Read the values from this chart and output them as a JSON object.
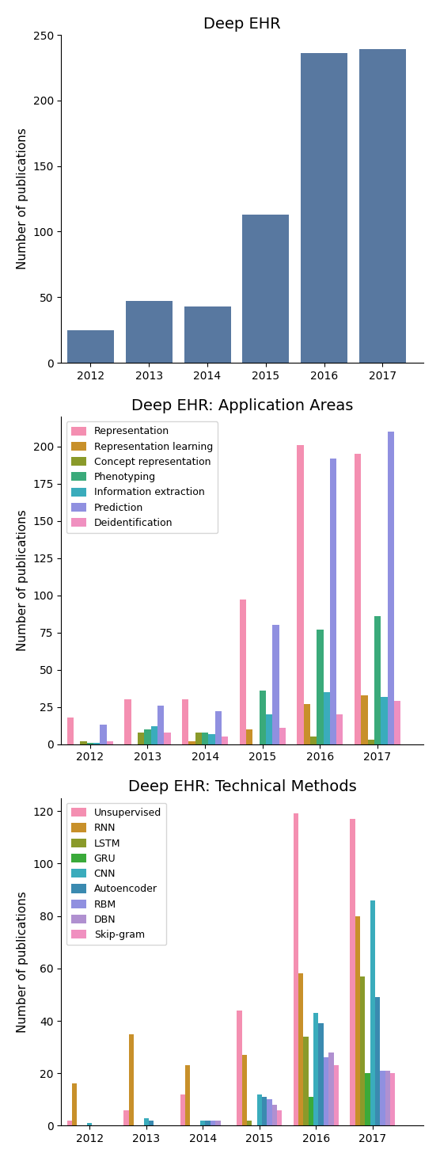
{
  "chart1": {
    "title": "Deep EHR",
    "years": [
      2012,
      2013,
      2014,
      2015,
      2016,
      2017
    ],
    "values": [
      25,
      47,
      43,
      113,
      236,
      239
    ],
    "bar_color": "#5878a0",
    "ylabel": "Number of publications",
    "ylim": [
      0,
      250
    ]
  },
  "chart2": {
    "title": "Deep EHR: Application Areas",
    "years": [
      2012,
      2013,
      2014,
      2015,
      2016,
      2017
    ],
    "ylabel": "Number of publications",
    "ylim": [
      0,
      220
    ],
    "categories": [
      "Representation",
      "Representation learning",
      "Concept representation",
      "Phenotyping",
      "Information extraction",
      "Prediction",
      "Deidentification"
    ],
    "colors": [
      "#f48fb1",
      "#c8902a",
      "#8a9a2a",
      "#3aaa7a",
      "#3aacbc",
      "#9090e0",
      "#f090c0"
    ],
    "data": {
      "Representation": [
        18,
        30,
        30,
        97,
        201,
        195
      ],
      "Representation learning": [
        0,
        0,
        2,
        10,
        27,
        33
      ],
      "Concept representation": [
        2,
        8,
        8,
        0,
        5,
        3
      ],
      "Phenotyping": [
        1,
        10,
        8,
        36,
        77,
        86
      ],
      "Information extraction": [
        1,
        12,
        7,
        20,
        35,
        32
      ],
      "Prediction": [
        13,
        26,
        22,
        80,
        192,
        210
      ],
      "Deidentification": [
        2,
        8,
        5,
        11,
        20,
        29
      ]
    }
  },
  "chart3": {
    "title": "Deep EHR: Technical Methods",
    "years": [
      2012,
      2013,
      2014,
      2015,
      2016,
      2017
    ],
    "ylabel": "Number of publications",
    "ylim": [
      0,
      125
    ],
    "categories": [
      "Unsupervised",
      "RNN",
      "LSTM",
      "GRU",
      "CNN",
      "Autoencoder",
      "RBM",
      "DBN",
      "Skip-gram"
    ],
    "colors": [
      "#f48fb1",
      "#c8902a",
      "#8a9a2a",
      "#3aaa3a",
      "#3aacbc",
      "#3a8ab0",
      "#9090e0",
      "#b090d0",
      "#f090c0"
    ],
    "data": {
      "Unsupervised": [
        2,
        6,
        12,
        44,
        119,
        117
      ],
      "RNN": [
        16,
        35,
        23,
        27,
        58,
        80
      ],
      "LSTM": [
        0,
        0,
        0,
        2,
        34,
        57
      ],
      "GRU": [
        0,
        0,
        0,
        0,
        11,
        20
      ],
      "CNN": [
        1,
        3,
        2,
        12,
        43,
        86
      ],
      "Autoencoder": [
        0,
        2,
        2,
        11,
        39,
        49
      ],
      "RBM": [
        0,
        0,
        2,
        10,
        26,
        21
      ],
      "DBN": [
        0,
        0,
        2,
        8,
        28,
        21
      ],
      "Skip-gram": [
        0,
        0,
        0,
        6,
        23,
        20
      ]
    }
  }
}
